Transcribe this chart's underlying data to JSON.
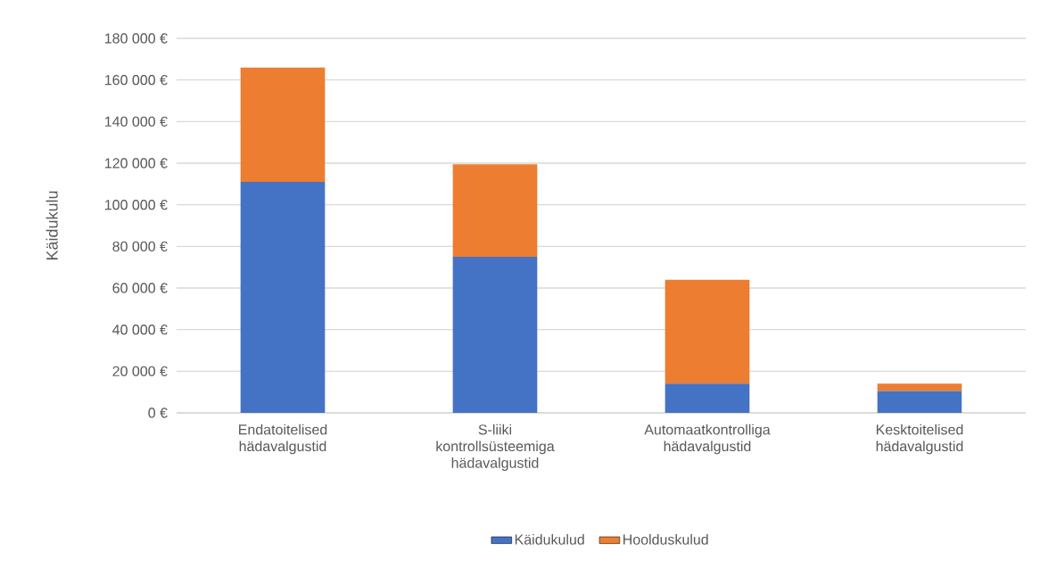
{
  "chart_data": {
    "type": "bar",
    "stacked": true,
    "ylabel": "Käidukulu",
    "categories": [
      "Endatoitelised hädavalgustid",
      "S-liiki kontrollsüsteemiga hädavalgustid",
      "Automaatkontrolliga hädavalgustid",
      "Kesktoitelised hädavalgustid"
    ],
    "series": [
      {
        "name": "Käidukulud",
        "color": "#4472c4",
        "values": [
          111000,
          75000,
          14000,
          10500
        ]
      },
      {
        "name": "Hoolduskulud",
        "color": "#ed7d31",
        "values": [
          55000,
          44500,
          50000,
          3500
        ]
      }
    ],
    "ylim": [
      0,
      180000
    ],
    "yticks": [
      {
        "value": 0,
        "label": "0 €"
      },
      {
        "value": 20000,
        "label": "20 000 €"
      },
      {
        "value": 40000,
        "label": "40 000 €"
      },
      {
        "value": 60000,
        "label": "60 000 €"
      },
      {
        "value": 80000,
        "label": "80 000 €"
      },
      {
        "value": 100000,
        "label": "100 000 €"
      },
      {
        "value": 120000,
        "label": "120 000 €"
      },
      {
        "value": 140000,
        "label": "140 000 €"
      },
      {
        "value": 160000,
        "label": "160 000 €"
      },
      {
        "value": 180000,
        "label": "180 000 €"
      }
    ],
    "grid": "y",
    "legend": "bottom"
  }
}
